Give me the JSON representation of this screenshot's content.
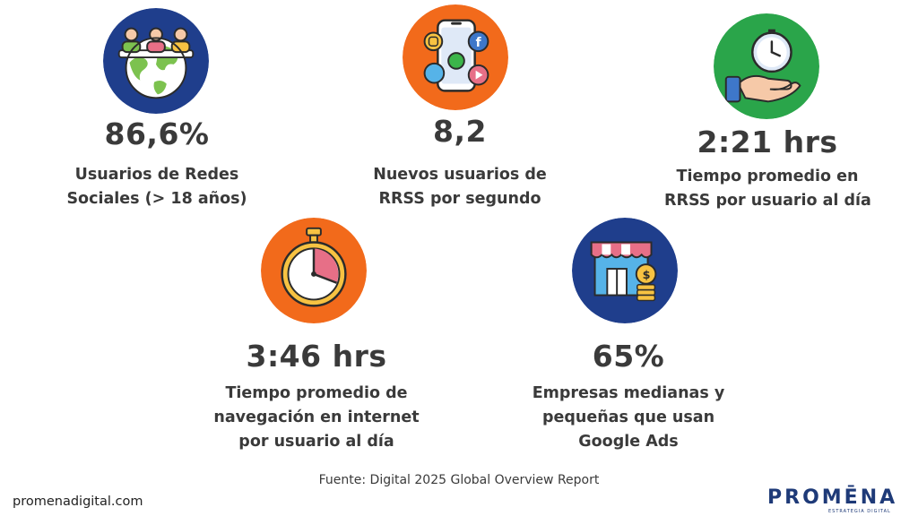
{
  "stats": [
    {
      "value": "86,6%",
      "label_lines": [
        "Usuarios de Redes",
        "Sociales (> 18 años)"
      ],
      "icon": "social-users-globe-icon",
      "circle_color": "#1f3e8c"
    },
    {
      "value": "8,2",
      "label_lines": [
        "Nuevos usuarios de",
        "RRSS por segundo"
      ],
      "icon": "smartphone-social-apps-icon",
      "circle_color": "#f26a1b"
    },
    {
      "value": "2:21 hrs",
      "label_lines": [
        "Tiempo promedio en",
        "RRSS por usuario al día"
      ],
      "icon": "hand-holding-clock-icon",
      "circle_color": "#2aa54a"
    },
    {
      "value": "3:46 hrs",
      "label_lines": [
        "Tiempo promedio de",
        "navegación en internet",
        "por usuario al día"
      ],
      "icon": "stopwatch-icon",
      "circle_color": "#f26a1b"
    },
    {
      "value": "65%",
      "label_lines": [
        "Empresas medianas y",
        "pequeñas que usan",
        "Google Ads"
      ],
      "icon": "store-coins-icon",
      "circle_color": "#1f3e8c"
    }
  ],
  "source": "Fuente: Digital 2025 Global Overview Report",
  "website": "promenadigital.com",
  "brand": {
    "name": "PROMĒNA",
    "tagline": "ESTRATEGIA DIGITAL",
    "color": "#1e3a78"
  }
}
